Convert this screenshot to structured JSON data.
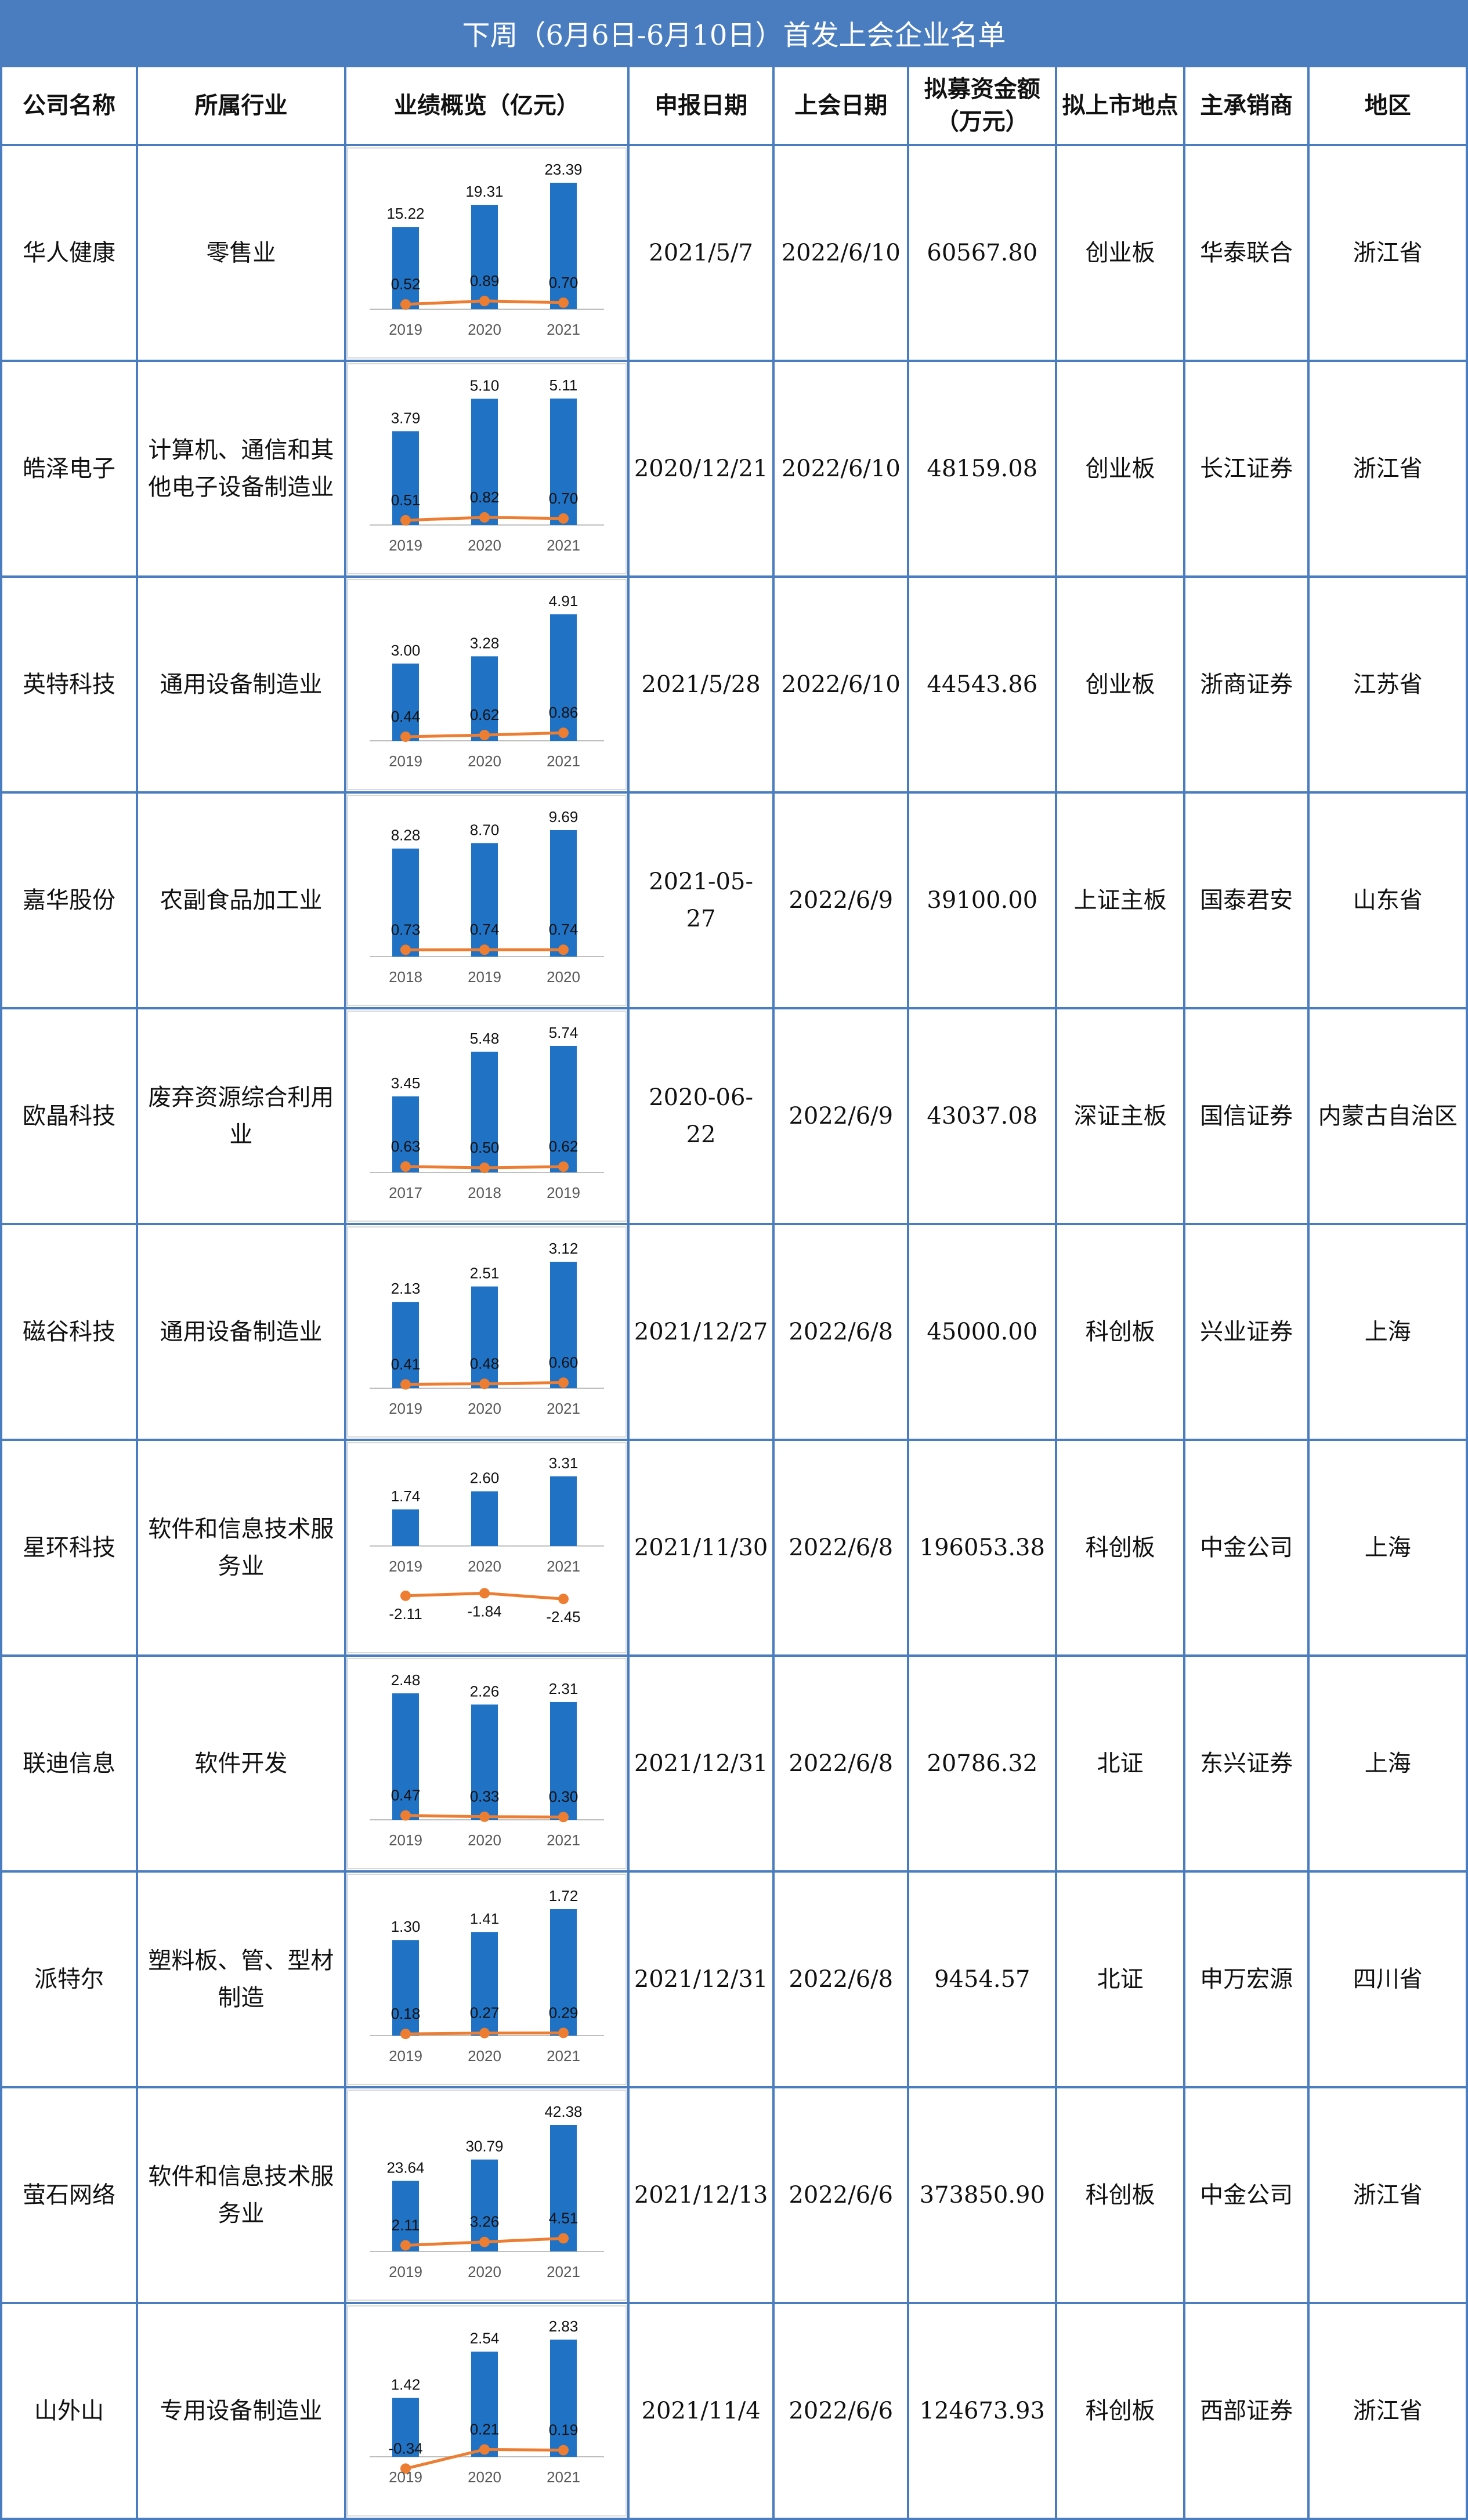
{
  "title": "下周（6月6日-6月10日）首发上会企业名单",
  "headers": [
    "公司名称",
    "所属行业",
    "业绩概览（亿元）",
    "申报日期",
    "上会日期",
    "拟募资金额（万元）",
    "拟上市地点",
    "主承销商",
    "地区"
  ],
  "colors": {
    "header_bg": "#4a7dbf",
    "bar": "#1f72c4",
    "line": "#ed7d31",
    "border": "#4a7dbf"
  },
  "rows": [
    {
      "company": "华人健康",
      "industry": "零售业",
      "filed": "2021/5/7",
      "meeting": "2022/6/10",
      "amount": "60567.80",
      "board": "创业板",
      "underwriter": "华泰联合",
      "region": "浙江省"
    },
    {
      "company": "皓泽电子",
      "industry": "计算机、通信和其他电子设备制造业",
      "filed": "2020/12/21",
      "meeting": "2022/6/10",
      "amount": "48159.08",
      "board": "创业板",
      "underwriter": "长江证券",
      "region": "浙江省"
    },
    {
      "company": "英特科技",
      "industry": "通用设备制造业",
      "filed": "2021/5/28",
      "meeting": "2022/6/10",
      "amount": "44543.86",
      "board": "创业板",
      "underwriter": "浙商证券",
      "region": "江苏省"
    },
    {
      "company": "嘉华股份",
      "industry": "农副食品加工业",
      "filed": "2021-05-27",
      "meeting": "2022/6/9",
      "amount": "39100.00",
      "board": "上证主板",
      "underwriter": "国泰君安",
      "region": "山东省"
    },
    {
      "company": "欧晶科技",
      "industry": "废弃资源综合利用业",
      "filed": "2020-06-22",
      "meeting": "2022/6/9",
      "amount": "43037.08",
      "board": "深证主板",
      "underwriter": "国信证券",
      "region": "内蒙古自治区"
    },
    {
      "company": "磁谷科技",
      "industry": "通用设备制造业",
      "filed": "2021/12/27",
      "meeting": "2022/6/8",
      "amount": "45000.00",
      "board": "科创板",
      "underwriter": "兴业证券",
      "region": "上海"
    },
    {
      "company": "星环科技",
      "industry": "软件和信息技术服务业",
      "filed": "2021/11/30",
      "meeting": "2022/6/8",
      "amount": "196053.38",
      "board": "科创板",
      "underwriter": "中金公司",
      "region": "上海"
    },
    {
      "company": "联迪信息",
      "industry": "软件开发",
      "filed": "2021/12/31",
      "meeting": "2022/6/8",
      "amount": "20786.32",
      "board": "北证",
      "underwriter": "东兴证券",
      "region": "上海"
    },
    {
      "company": "派特尔",
      "industry": "塑料板、管、型材制造",
      "filed": "2021/12/31",
      "meeting": "2022/6/8",
      "amount": "9454.57",
      "board": "北证",
      "underwriter": "申万宏源",
      "region": "四川省"
    },
    {
      "company": "萤石网络",
      "industry": "软件和信息技术服务业",
      "filed": "2021/12/13",
      "meeting": "2022/6/6",
      "amount": "373850.90",
      "board": "科创板",
      "underwriter": "中金公司",
      "region": "浙江省"
    },
    {
      "company": "山外山",
      "industry": "专用设备制造业",
      "filed": "2021/11/4",
      "meeting": "2022/6/6",
      "amount": "124673.93",
      "board": "科创板",
      "underwriter": "西部证券",
      "region": "浙江省"
    }
  ],
  "chart_data": [
    {
      "type": "bar+line",
      "company": "华人健康",
      "categories": [
        "2019",
        "2020",
        "2021"
      ],
      "bars": [
        15.22,
        19.31,
        23.39
      ],
      "line": [
        0.52,
        0.89,
        0.7
      ]
    },
    {
      "type": "bar+line",
      "company": "皓泽电子",
      "categories": [
        "2019",
        "2020",
        "2021"
      ],
      "bars": [
        3.79,
        5.1,
        5.11
      ],
      "line": [
        0.51,
        0.82,
        0.7
      ]
    },
    {
      "type": "bar+line",
      "company": "英特科技",
      "categories": [
        "2019",
        "2020",
        "2021"
      ],
      "bars": [
        3.0,
        3.28,
        4.91
      ],
      "line": [
        0.44,
        0.62,
        0.86
      ]
    },
    {
      "type": "bar+line",
      "company": "嘉华股份",
      "categories": [
        "2018",
        "2019",
        "2020"
      ],
      "bars": [
        8.28,
        8.7,
        9.69
      ],
      "line": [
        0.73,
        0.74,
        0.74
      ]
    },
    {
      "type": "bar+line",
      "company": "欧晶科技",
      "categories": [
        "2017",
        "2018",
        "2019"
      ],
      "bars": [
        3.45,
        5.48,
        5.74
      ],
      "line": [
        0.63,
        0.5,
        0.62
      ]
    },
    {
      "type": "bar+line",
      "company": "磁谷科技",
      "categories": [
        "2019",
        "2020",
        "2021"
      ],
      "bars": [
        2.13,
        2.51,
        3.12
      ],
      "line": [
        0.41,
        0.48,
        0.6
      ]
    },
    {
      "type": "bar+line",
      "company": "星环科技",
      "categories": [
        "2019",
        "2020",
        "2021"
      ],
      "bars": [
        1.74,
        2.6,
        3.31
      ],
      "line": [
        -2.11,
        -1.84,
        -2.45
      ]
    },
    {
      "type": "bar+line",
      "company": "联迪信息",
      "categories": [
        "2019",
        "2020",
        "2021"
      ],
      "bars": [
        2.48,
        2.26,
        2.31
      ],
      "line": [
        0.47,
        0.33,
        0.3
      ]
    },
    {
      "type": "bar+line",
      "company": "派特尔",
      "categories": [
        "2019",
        "2020",
        "2021"
      ],
      "bars": [
        1.3,
        1.41,
        1.72
      ],
      "line": [
        0.18,
        0.27,
        0.29
      ]
    },
    {
      "type": "bar+line",
      "company": "萤石网络",
      "categories": [
        "2019",
        "2020",
        "2021"
      ],
      "bars": [
        23.64,
        30.79,
        42.38
      ],
      "line": [
        2.11,
        3.26,
        4.51
      ]
    },
    {
      "type": "bar+line",
      "company": "山外山",
      "categories": [
        "2019",
        "2020",
        "2021"
      ],
      "bars": [
        1.42,
        2.54,
        2.83
      ],
      "line": [
        -0.34,
        0.21,
        0.19
      ]
    }
  ]
}
